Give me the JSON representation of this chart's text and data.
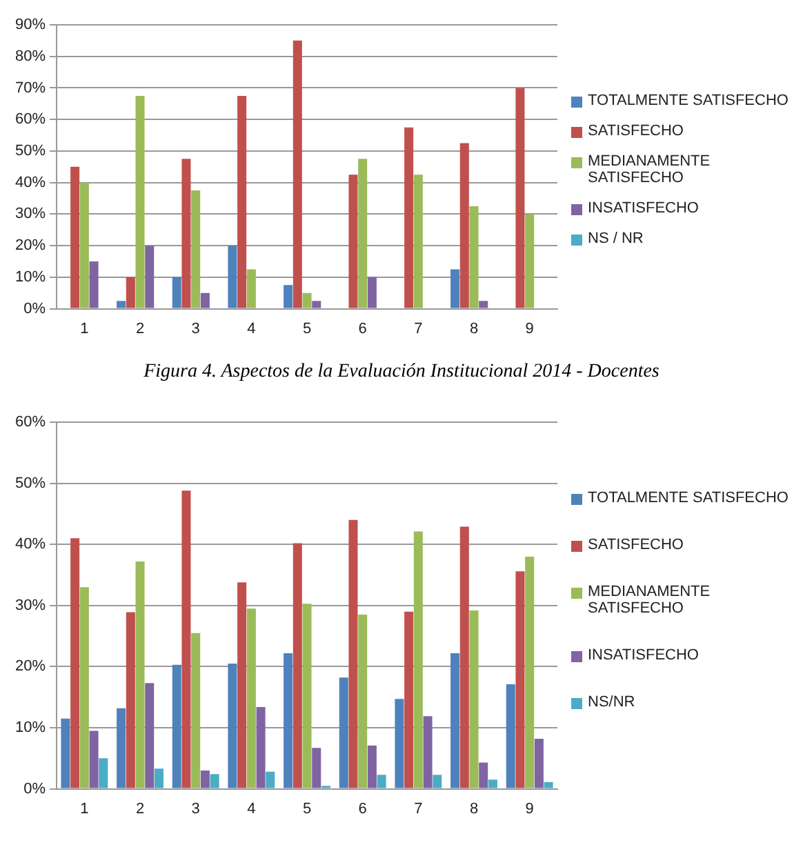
{
  "chart_data": [
    {
      "type": "bar",
      "categories": [
        "1",
        "2",
        "3",
        "4",
        "5",
        "6",
        "7",
        "8",
        "9"
      ],
      "series": [
        {
          "name": "TOTALMENTE SATISFECHO",
          "color": "#4f81bd",
          "values": [
            0,
            2.5,
            10,
            20,
            7.5,
            0,
            0,
            12.5,
            0
          ]
        },
        {
          "name": "SATISFECHO",
          "color": "#c0504d",
          "values": [
            45,
            10,
            47.5,
            67.5,
            85,
            42.5,
            57.5,
            52.5,
            70
          ]
        },
        {
          "name": "MEDIANAMENTE SATISFECHO",
          "color": "#9bbb59",
          "values": [
            40,
            67.5,
            37.5,
            12.5,
            5,
            47.5,
            42.5,
            32.5,
            30
          ]
        },
        {
          "name": "INSATISFECHO",
          "color": "#8064a2",
          "values": [
            15,
            20,
            5,
            0,
            2.5,
            10,
            0,
            2.5,
            0
          ]
        },
        {
          "name": "NS / NR",
          "color": "#4bacc6",
          "values": [
            0,
            0,
            0,
            0,
            0,
            0,
            0,
            0,
            0
          ]
        }
      ],
      "ylim": [
        0,
        90
      ],
      "yticks": [
        {
          "value": 0,
          "label": "0%"
        },
        {
          "value": 10,
          "label": "10%"
        },
        {
          "value": 20,
          "label": "20%"
        },
        {
          "value": 30,
          "label": "30%"
        },
        {
          "value": 40,
          "label": "40%"
        },
        {
          "value": 50,
          "label": "50%"
        },
        {
          "value": 60,
          "label": "60%"
        },
        {
          "value": 70,
          "label": "70%"
        },
        {
          "value": 80,
          "label": "80%"
        },
        {
          "value": 90,
          "label": "90%"
        }
      ],
      "grid": "y",
      "legend": "right",
      "annotations": [
        "Figura  4.  Aspectos de la Evaluación Institucional 2014 - Docentes"
      ]
    },
    {
      "type": "bar",
      "categories": [
        "1",
        "2",
        "3",
        "4",
        "5",
        "6",
        "7",
        "8",
        "9"
      ],
      "series": [
        {
          "name": "TOTALMENTE SATISFECHO",
          "color": "#4f81bd",
          "values": [
            11.5,
            13.2,
            20.3,
            20.5,
            22.2,
            18.2,
            14.7,
            22.2,
            17.1
          ]
        },
        {
          "name": "SATISFECHO",
          "color": "#c0504d",
          "values": [
            41,
            28.9,
            48.8,
            33.8,
            40.2,
            44,
            29,
            42.9,
            35.6
          ]
        },
        {
          "name": "MEDIANAMENTE SATISFECHO",
          "color": "#9bbb59",
          "values": [
            33,
            37.2,
            25.5,
            29.5,
            30.3,
            28.5,
            42.1,
            29.2,
            38
          ]
        },
        {
          "name": "INSATISFECHO",
          "color": "#8064a2",
          "values": [
            9.5,
            17.3,
            3,
            13.4,
            6.7,
            7.1,
            11.9,
            4.3,
            8.2
          ]
        },
        {
          "name": "NS/NR",
          "color": "#4bacc6",
          "values": [
            5,
            3.3,
            2.4,
            2.8,
            0.5,
            2.3,
            2.3,
            1.5,
            1.1
          ]
        }
      ],
      "ylim": [
        0,
        60
      ],
      "yticks": [
        {
          "value": 0,
          "label": "0%"
        },
        {
          "value": 10,
          "label": "10%"
        },
        {
          "value": 20,
          "label": "20%"
        },
        {
          "value": 30,
          "label": "30%"
        },
        {
          "value": 40,
          "label": "40%"
        },
        {
          "value": 50,
          "label": "50%"
        },
        {
          "value": 60,
          "label": "60%"
        }
      ],
      "grid": "y",
      "legend": "right"
    }
  ]
}
